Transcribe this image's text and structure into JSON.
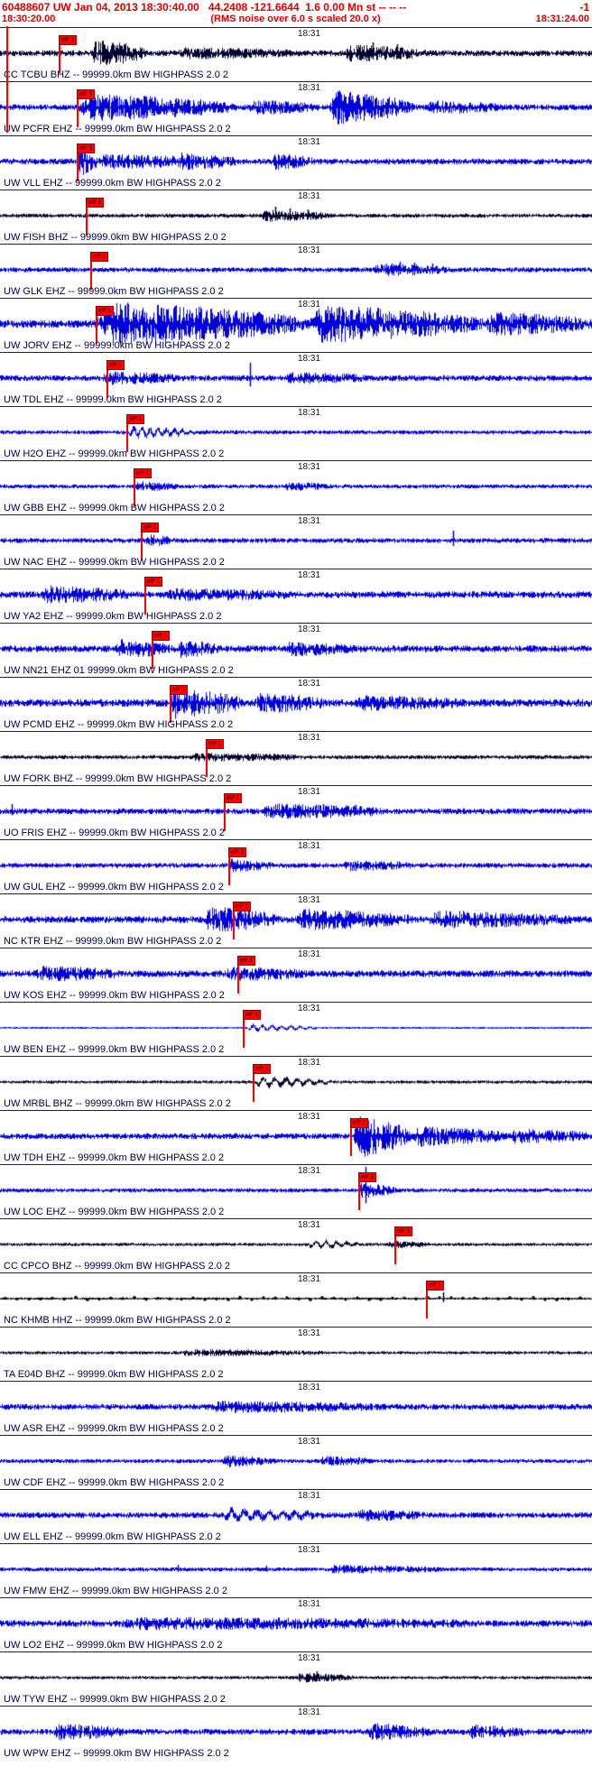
{
  "header": {
    "line1": "60488607 UW Jan 04, 2013 18:30:40.00   44.2408 -121.6644  1.6 0.00 Mn st -- -- --",
    "line1_right": "-1",
    "time_left": "18:30:20.00",
    "subtitle": "(RMS noise over 6.0 s scaled 20.0 x)",
    "time_right": "18:31:24.00"
  },
  "minute_label": "18:31",
  "colors": {
    "blue": "#0000dd",
    "dark": "#000030",
    "black": "#000010",
    "pick": "#ff0000",
    "label": "#00004a"
  },
  "traces": [
    {
      "label": "CC TCBU BHZ -- 99999.0km BW HIGHPASS 2.0 2",
      "color": "dark",
      "pick": {
        "x": 0.099,
        "label": "eP 1"
      },
      "base": 3,
      "bursts": [
        {
          "s": 0.155,
          "e": 0.245,
          "a": 15
        },
        {
          "s": 0.3,
          "e": 0.5,
          "a": 4
        },
        {
          "s": 0.58,
          "e": 0.72,
          "a": 7
        }
      ],
      "spikes": [
        {
          "x": 0.63,
          "a": 12
        },
        {
          "x": 0.67,
          "a": 10
        }
      ]
    },
    {
      "label": "UW PCFR EHZ -- 99999.0km BW HIGHPASS 2.0 2",
      "color": "blue",
      "pick": {
        "x": 0.13,
        "label": "eP 1"
      },
      "base": 3,
      "bursts": [
        {
          "s": 0.13,
          "e": 0.4,
          "a": 13
        },
        {
          "s": 0.42,
          "e": 0.53,
          "a": 6
        },
        {
          "s": 0.555,
          "e": 0.7,
          "a": 17
        },
        {
          "s": 0.72,
          "e": 0.85,
          "a": 5
        }
      ],
      "spikes": []
    },
    {
      "label": "UW VLL EHZ -- 99999.0km BW HIGHPASS 2.0 2",
      "color": "blue",
      "pick": {
        "x": 0.13,
        "label": "eP 1"
      },
      "base": 3,
      "bursts": [
        {
          "s": 0.128,
          "e": 0.165,
          "a": 15
        },
        {
          "s": 0.165,
          "e": 0.34,
          "a": 6
        },
        {
          "s": 0.3,
          "e": 0.4,
          "a": 8
        },
        {
          "s": 0.455,
          "e": 0.53,
          "a": 7
        }
      ],
      "spikes": [
        {
          "x": 0.133,
          "a": 16
        }
      ]
    },
    {
      "label": "UW FISH BHZ -- 99999.0km BW HIGHPASS 2.0 2",
      "color": "dark",
      "pick": {
        "x": 0.145,
        "label": "eP 1"
      },
      "base": 2,
      "bursts": [
        {
          "s": 0.44,
          "e": 0.56,
          "a": 5
        }
      ],
      "spikes": [
        {
          "x": 0.465,
          "a": 10
        },
        {
          "x": 0.49,
          "a": 8
        },
        {
          "x": 0.52,
          "a": 7
        }
      ]
    },
    {
      "label": "UW GLK EHZ -- 99999.0km BW HIGHPASS 2.0 2",
      "color": "blue",
      "pick": {
        "x": 0.152,
        "label": "eP 1"
      },
      "base": 2.5,
      "bursts": [
        {
          "s": 0.63,
          "e": 0.76,
          "a": 5
        }
      ],
      "spikes": [
        {
          "x": 0.675,
          "a": 9
        },
        {
          "x": 0.7,
          "a": 8
        },
        {
          "x": 0.73,
          "a": 7
        }
      ]
    },
    {
      "label": "UW JORV EHZ -- 99999.0km BW HIGHPASS 2.0 2",
      "color": "blue",
      "pick": {
        "x": 0.162,
        "label": "eP 1"
      },
      "base": 4,
      "bursts": [
        {
          "s": 0.16,
          "e": 0.52,
          "a": 22
        },
        {
          "s": 0.52,
          "e": 0.82,
          "a": 18
        },
        {
          "s": 0.82,
          "e": 1.0,
          "a": 10
        }
      ],
      "spikes": []
    },
    {
      "label": "UW TDL EHZ -- 99999.0km BW HIGHPASS 2.0 2",
      "color": "blue",
      "pick": {
        "x": 0.18,
        "label": "eP 1"
      },
      "base": 3,
      "bursts": [
        {
          "s": 0.17,
          "e": 0.3,
          "a": 5
        },
        {
          "s": 0.48,
          "e": 0.62,
          "a": 4
        }
      ],
      "spikes": [
        {
          "x": 0.423,
          "a": 17
        }
      ]
    },
    {
      "label": "UW H2O EHZ -- 99999.0km BW HIGHPASS 2.0 2",
      "color": "blue",
      "pick": {
        "x": 0.213,
        "label": "eP 1"
      },
      "base": 2,
      "bursts": [
        {
          "s": 0.215,
          "e": 0.33,
          "a": 6,
          "f": 0.7
        }
      ],
      "spikes": []
    },
    {
      "label": "UW GBB EHZ -- 99999.0km BW HIGHPASS 2.0 2",
      "color": "blue",
      "pick": {
        "x": 0.226,
        "label": "eP 1"
      },
      "base": 2,
      "bursts": [
        {
          "s": 0.228,
          "e": 0.3,
          "a": 4
        },
        {
          "s": 0.48,
          "e": 0.56,
          "a": 3
        }
      ],
      "spikes": []
    },
    {
      "label": "UW NAC EHZ -- 99999.0km BW HIGHPASS 2.0 2",
      "color": "blue",
      "pick": {
        "x": 0.238,
        "label": "eP 1"
      },
      "base": 2.5,
      "bursts": [
        {
          "s": 0.24,
          "e": 0.29,
          "a": 5
        }
      ],
      "spikes": [
        {
          "x": 0.765,
          "a": 11
        }
      ]
    },
    {
      "label": "UW YA2 EHZ -- 99999.0km BW HIGHPASS 2.0 2",
      "color": "blue",
      "pick": {
        "x": 0.244,
        "label": "eP 1"
      },
      "base": 3.5,
      "bursts": [
        {
          "s": 0.07,
          "e": 0.22,
          "a": 7
        },
        {
          "s": 0.28,
          "e": 0.5,
          "a": 4
        }
      ],
      "spikes": []
    },
    {
      "label": "UW NN21 EHZ 01 99999.0km BW HIGHPASS 2.0 2",
      "color": "blue",
      "pick": {
        "x": 0.256,
        "label": "eP 1"
      },
      "base": 3.5,
      "bursts": [
        {
          "s": 0.195,
          "e": 0.29,
          "a": 8
        },
        {
          "s": 0.3,
          "e": 0.37,
          "a": 7
        },
        {
          "s": 0.48,
          "e": 0.6,
          "a": 5
        }
      ],
      "spikes": []
    },
    {
      "label": "UW PCMD EHZ -- 99999.0km BW HIGHPASS 2.0 2",
      "color": "blue",
      "pick": {
        "x": 0.287,
        "label": "eP 1"
      },
      "base": 4,
      "bursts": [
        {
          "s": 0.285,
          "e": 0.41,
          "a": 14
        },
        {
          "s": 0.43,
          "e": 0.55,
          "a": 8
        },
        {
          "s": 0.6,
          "e": 0.78,
          "a": 5
        }
      ],
      "spikes": []
    },
    {
      "label": "UW FORK BHZ -- 99999.0km BW HIGHPASS 2.0 2",
      "color": "dark",
      "pick": {
        "x": 0.348,
        "label": "eP 1"
      },
      "base": 2,
      "bursts": [
        {
          "s": 0.32,
          "e": 0.52,
          "a": 3
        }
      ],
      "spikes": []
    },
    {
      "label": "UO FRIS EHZ -- 99999.0km BW HIGHPASS 2.0 2",
      "color": "blue",
      "pick": {
        "x": 0.378,
        "label": "eP 1"
      },
      "base": 3,
      "bursts": [
        {
          "s": 0.44,
          "e": 0.66,
          "a": 6
        }
      ],
      "spikes": [
        {
          "x": 0.02,
          "a": 8
        },
        {
          "x": 0.545,
          "a": 8
        },
        {
          "x": 0.6,
          "a": 7
        }
      ]
    },
    {
      "label": "UW GUL EHZ -- 99999.0km BW HIGHPASS 2.0 2",
      "color": "blue",
      "pick": {
        "x": 0.386,
        "label": "eP 1"
      },
      "base": 2.5,
      "bursts": [
        {
          "s": 0.385,
          "e": 0.46,
          "a": 5
        },
        {
          "s": 0.58,
          "e": 0.7,
          "a": 4
        }
      ],
      "spikes": []
    },
    {
      "label": "NC KTR EHZ -- 99999.0km BW HIGHPASS 2.0 2",
      "color": "blue",
      "pick": {
        "x": 0.393,
        "label": "eP 1"
      },
      "base": 3.5,
      "bursts": [
        {
          "s": 0.345,
          "e": 0.47,
          "a": 12
        },
        {
          "s": 0.5,
          "e": 0.7,
          "a": 9
        },
        {
          "s": 0.72,
          "e": 0.97,
          "a": 7
        }
      ],
      "spikes": []
    },
    {
      "label": "UW KOS EHZ -- 99999.0km BW HIGHPASS 2.0 2",
      "color": "blue",
      "pick": {
        "x": 0.401,
        "label": "eP 1"
      },
      "base": 3.5,
      "bursts": [
        {
          "s": 0.06,
          "e": 0.2,
          "a": 6
        },
        {
          "s": 0.38,
          "e": 0.52,
          "a": 5
        }
      ],
      "spikes": []
    },
    {
      "label": "UW BEN EHZ -- 99999.0km BW HIGHPASS 2.0 2",
      "color": "blue",
      "pick": {
        "x": 0.41,
        "label": "eP 1"
      },
      "base": 0.8,
      "bursts": [
        {
          "s": 0.415,
          "e": 0.54,
          "a": 4,
          "f": 0.6
        }
      ],
      "spikes": []
    },
    {
      "label": "UW MRBL BHZ -- 99999.0km BW HIGHPASS 2.0 2",
      "color": "dark",
      "pick": {
        "x": 0.427,
        "label": "eP 1"
      },
      "base": 1.5,
      "bursts": [
        {
          "s": 0.43,
          "e": 0.56,
          "a": 6,
          "f": 0.5
        }
      ],
      "spikes": []
    },
    {
      "label": "UW TDH EHZ -- 99999.0km BW HIGHPASS 2.0 2",
      "color": "blue",
      "pick": {
        "x": 0.592,
        "label": "eP 1"
      },
      "base": 3,
      "bursts": [
        {
          "s": 0.597,
          "e": 0.695,
          "a": 22
        },
        {
          "s": 0.695,
          "e": 0.86,
          "a": 9
        },
        {
          "s": 0.86,
          "e": 1.0,
          "a": 6
        }
      ],
      "spikes": []
    },
    {
      "label": "UW LOC EHZ -- 99999.0km BW HIGHPASS 2.0 2",
      "color": "blue",
      "pick": {
        "x": 0.605,
        "label": "eP 1"
      },
      "base": 2,
      "bursts": [
        {
          "s": 0.605,
          "e": 0.67,
          "a": 7
        }
      ],
      "spikes": [
        {
          "x": 0.617,
          "a": 26
        }
      ]
    },
    {
      "label": "CC CPCO BHZ -- 99999.0km BW HIGHPASS 2.0 2",
      "color": "dark",
      "pick": {
        "x": 0.666,
        "label": "eP 1"
      },
      "base": 1.5,
      "bursts": [
        {
          "s": 0.52,
          "e": 0.61,
          "a": 5,
          "f": 0.55
        },
        {
          "s": 0.655,
          "e": 0.73,
          "a": 3
        }
      ],
      "spikes": []
    },
    {
      "label": "NC KHMB HHZ -- 99999.0km BW HIGHPASS 2.0 2",
      "color": "black",
      "dotted": true,
      "pick": {
        "x": 0.72,
        "label": "eP 1"
      },
      "base": 1,
      "bursts": [],
      "spikes": [
        {
          "x": 0.748,
          "a": 7
        }
      ]
    },
    {
      "label": "TA E04D BHZ -- 99999.0km BW HIGHPASS 2.0 2",
      "color": "dark",
      "pick": null,
      "base": 1.5,
      "bursts": [
        {
          "s": 0.3,
          "e": 0.55,
          "a": 2.5
        }
      ],
      "spikes": []
    },
    {
      "label": "UW ASR EHZ -- 99999.0km BW HIGHPASS 2.0 2",
      "color": "blue",
      "pick": null,
      "base": 3,
      "bursts": [
        {
          "s": 0.35,
          "e": 0.65,
          "a": 4
        }
      ],
      "spikes": []
    },
    {
      "label": "UW CDF EHZ -- 99999.0km BW HIGHPASS 2.0 2",
      "color": "blue",
      "pick": null,
      "base": 2,
      "bursts": [
        {
          "s": 0.375,
          "e": 0.465,
          "a": 5
        },
        {
          "s": 0.54,
          "e": 0.63,
          "a": 4
        }
      ],
      "spikes": []
    },
    {
      "label": "UW ELL EHZ -- 99999.0km BW HIGHPASS 2.0 2",
      "color": "blue",
      "pick": null,
      "base": 3,
      "bursts": [
        {
          "s": 0.375,
          "e": 0.56,
          "a": 6,
          "f": 0.45
        },
        {
          "s": 0.6,
          "e": 0.72,
          "a": 4
        }
      ],
      "spikes": []
    },
    {
      "label": "UW FMW EHZ -- 99999.0km BW HIGHPASS 2.0 2",
      "color": "blue",
      "pick": null,
      "base": 2,
      "bursts": [
        {
          "s": 0.55,
          "e": 0.75,
          "a": 3
        }
      ],
      "spikes": [
        {
          "x": 0.3,
          "a": 5
        },
        {
          "x": 0.45,
          "a": 4
        }
      ]
    },
    {
      "label": "UW LO2 EHZ -- 99999.0km BW HIGHPASS 2.0 2",
      "color": "blue",
      "pick": null,
      "base": 3.5,
      "bursts": [
        {
          "s": 0.2,
          "e": 0.8,
          "a": 4
        }
      ],
      "spikes": []
    },
    {
      "label": "UW TYW EHZ -- 99999.0km BW HIGHPASS 2.0 2",
      "color": "dark",
      "pick": null,
      "base": 1.5,
      "bursts": [
        {
          "s": 0.5,
          "e": 0.6,
          "a": 4
        }
      ],
      "spikes": [
        {
          "x": 0.535,
          "a": 7
        }
      ]
    },
    {
      "label": "UW WPW EHZ -- 99999.0km BW HIGHPASS 2.0 2",
      "color": "blue",
      "pick": null,
      "base": 3,
      "bursts": [
        {
          "s": 0.09,
          "e": 0.21,
          "a": 7
        },
        {
          "s": 0.62,
          "e": 0.73,
          "a": 7
        },
        {
          "s": 0.79,
          "e": 0.89,
          "a": 5
        }
      ],
      "spikes": []
    }
  ]
}
